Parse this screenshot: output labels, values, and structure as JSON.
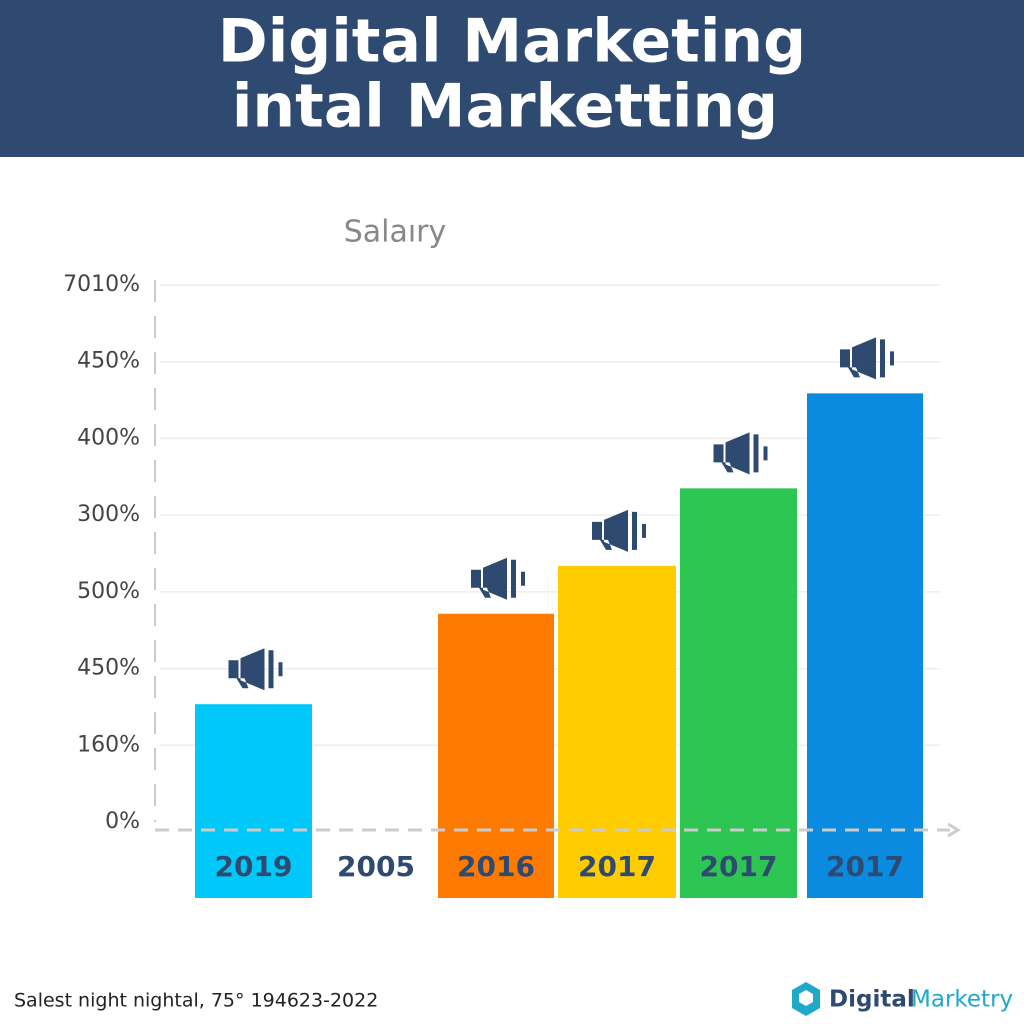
{
  "chart_data": {
    "type": "bar",
    "title": [
      "Digital Marketing",
      "intal Marketting"
    ],
    "subtitle": "Salaıry",
    "y_axis_labels": [
      "0%",
      "160%",
      "450%",
      "500%",
      "300%",
      "400%",
      "450%",
      "7010%"
    ],
    "categories": [
      "2019",
      "2005",
      "2016",
      "2017",
      "2017",
      "2017"
    ],
    "values": [
      1.55,
      null,
      2.74,
      3.37,
      4.39,
      5.64
    ],
    "colors": [
      "#00c8f8",
      "#00c8f8",
      "#ff7a00",
      "#ffcc00",
      "#2dc653",
      "#0a8be0"
    ],
    "ylim": [
      0,
      7
    ],
    "grid": true,
    "footer": "Salest night nightal, 75° 194623-2022",
    "brand": [
      "Digital",
      "Marketry"
    ]
  }
}
